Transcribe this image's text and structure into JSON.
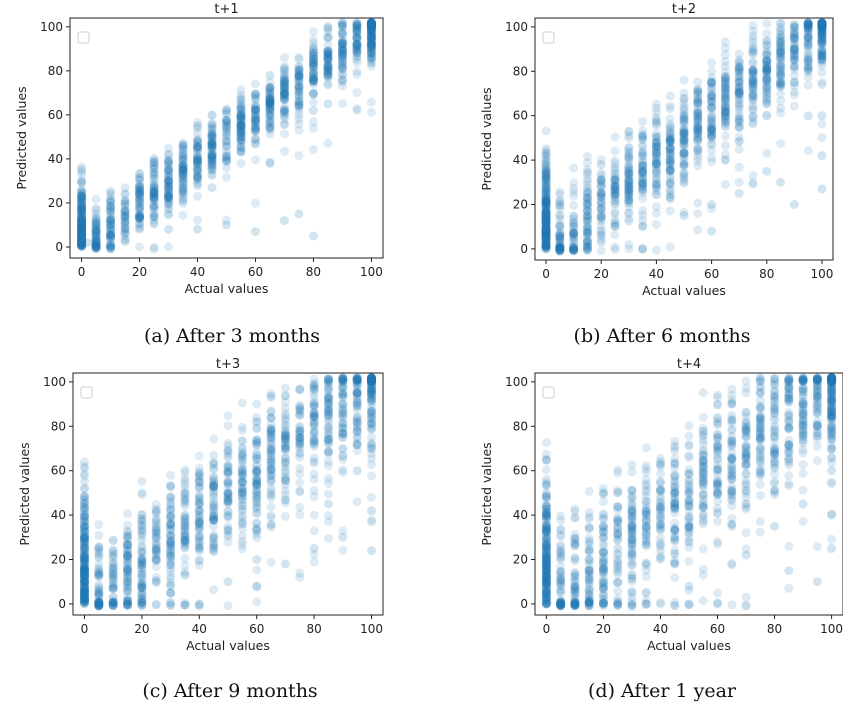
{
  "chart_data": [
    {
      "type": "scatter",
      "title": "t+1",
      "caption": "(a) After 3 months",
      "xlabel": "Actual values",
      "ylabel": "Predicted values",
      "xlim": [
        -4,
        104
      ],
      "ylim": [
        -5,
        104
      ],
      "xticks": [
        0,
        20,
        40,
        60,
        80,
        100
      ],
      "yticks": [
        0,
        20,
        40,
        60,
        80,
        100
      ],
      "legend": "top-left (empty)",
      "color": "#1f77b4",
      "point_alpha": 0.15,
      "spread_label": "tight",
      "points": [
        [
          0,
          0
        ],
        [
          0,
          3
        ],
        [
          0,
          6
        ],
        [
          0,
          9
        ],
        [
          2,
          2
        ],
        [
          5,
          6
        ],
        [
          10,
          10
        ],
        [
          15,
          15
        ],
        [
          20,
          20
        ],
        [
          25,
          25
        ],
        [
          30,
          30
        ],
        [
          35,
          35
        ],
        [
          40,
          40
        ],
        [
          45,
          45
        ],
        [
          50,
          50
        ],
        [
          55,
          55
        ],
        [
          60,
          60
        ],
        [
          65,
          65
        ],
        [
          70,
          70
        ],
        [
          75,
          75
        ],
        [
          80,
          80
        ],
        [
          85,
          85
        ],
        [
          90,
          90
        ],
        [
          95,
          95
        ],
        [
          100,
          98
        ],
        [
          20,
          8
        ],
        [
          30,
          8
        ],
        [
          40,
          8
        ],
        [
          50,
          10
        ],
        [
          60,
          7
        ],
        [
          80,
          5
        ],
        [
          70,
          12
        ],
        [
          75,
          15
        ],
        [
          35,
          20
        ],
        [
          45,
          27
        ],
        [
          65,
          38
        ],
        [
          40,
          55
        ],
        [
          55,
          65
        ],
        [
          65,
          78
        ],
        [
          80,
          62
        ],
        [
          85,
          65
        ],
        [
          90,
          75
        ],
        [
          95,
          92
        ],
        [
          100,
          95
        ],
        [
          100,
          93
        ]
      ]
    },
    {
      "type": "scatter",
      "title": "t+2",
      "caption": "(b) After 6 months",
      "xlabel": "Actual values",
      "ylabel": "Predicted values",
      "xlim": [
        -4,
        104
      ],
      "ylim": [
        -5,
        104
      ],
      "xticks": [
        0,
        20,
        40,
        60,
        80,
        100
      ],
      "yticks": [
        0,
        20,
        40,
        60,
        80,
        100
      ],
      "legend": "top-left (empty)",
      "color": "#1f77b4",
      "point_alpha": 0.15,
      "spread_label": "medium",
      "points": [
        [
          0,
          0
        ],
        [
          0,
          5
        ],
        [
          0,
          10
        ],
        [
          0,
          15
        ],
        [
          0,
          20
        ],
        [
          0,
          25
        ],
        [
          0,
          32
        ],
        [
          0,
          45
        ],
        [
          5,
          5
        ],
        [
          10,
          10
        ],
        [
          15,
          15
        ],
        [
          20,
          20
        ],
        [
          25,
          25
        ],
        [
          30,
          30
        ],
        [
          35,
          35
        ],
        [
          40,
          40
        ],
        [
          45,
          45
        ],
        [
          50,
          50
        ],
        [
          55,
          55
        ],
        [
          60,
          60
        ],
        [
          65,
          65
        ],
        [
          70,
          70
        ],
        [
          75,
          75
        ],
        [
          80,
          80
        ],
        [
          85,
          85
        ],
        [
          90,
          90
        ],
        [
          95,
          95
        ],
        [
          100,
          98
        ],
        [
          20,
          3
        ],
        [
          35,
          10
        ],
        [
          50,
          15
        ],
        [
          60,
          20
        ],
        [
          70,
          25
        ],
        [
          80,
          35
        ],
        [
          85,
          30
        ],
        [
          90,
          20
        ],
        [
          100,
          60
        ],
        [
          100,
          42
        ],
        [
          100,
          27
        ],
        [
          95,
          60
        ],
        [
          90,
          75
        ],
        [
          60,
          8
        ],
        [
          20,
          38
        ],
        [
          40,
          58
        ],
        [
          60,
          75
        ]
      ]
    },
    {
      "type": "scatter",
      "title": "t+3",
      "caption": "(c) After 9 months",
      "xlabel": "Actual values",
      "ylabel": "Predicted values",
      "xlim": [
        -4,
        104
      ],
      "ylim": [
        -5,
        104
      ],
      "xticks": [
        0,
        20,
        40,
        60,
        80,
        100
      ],
      "yticks": [
        0,
        20,
        40,
        60,
        80,
        100
      ],
      "legend": "top-left (empty)",
      "color": "#1f77b4",
      "point_alpha": 0.15,
      "spread_label": "wide",
      "points": [
        [
          0,
          0
        ],
        [
          0,
          5
        ],
        [
          0,
          10
        ],
        [
          0,
          15
        ],
        [
          0,
          20
        ],
        [
          0,
          25
        ],
        [
          0,
          30
        ],
        [
          0,
          35
        ],
        [
          5,
          5
        ],
        [
          10,
          12
        ],
        [
          15,
          15
        ],
        [
          20,
          20
        ],
        [
          25,
          25
        ],
        [
          30,
          30
        ],
        [
          35,
          35
        ],
        [
          40,
          40
        ],
        [
          45,
          45
        ],
        [
          50,
          50
        ],
        [
          55,
          55
        ],
        [
          60,
          60
        ],
        [
          65,
          65
        ],
        [
          70,
          70
        ],
        [
          75,
          75
        ],
        [
          80,
          80
        ],
        [
          85,
          85
        ],
        [
          90,
          90
        ],
        [
          95,
          95
        ],
        [
          100,
          98
        ],
        [
          40,
          0
        ],
        [
          20,
          2
        ],
        [
          60,
          8
        ],
        [
          70,
          18
        ],
        [
          80,
          25
        ],
        [
          90,
          30
        ],
        [
          100,
          24
        ],
        [
          100,
          42
        ],
        [
          100,
          70
        ],
        [
          95,
          60
        ],
        [
          85,
          45
        ],
        [
          60,
          20
        ],
        [
          30,
          5
        ],
        [
          50,
          10
        ],
        [
          20,
          35
        ],
        [
          40,
          55
        ],
        [
          60,
          72
        ]
      ]
    },
    {
      "type": "scatter",
      "title": "t+4",
      "caption": "(d) After 1 year",
      "xlabel": "Actual values",
      "ylabel": "Predicted values",
      "xlim": [
        -4,
        104
      ],
      "ylim": [
        -5,
        104
      ],
      "xticks": [
        0,
        20,
        40,
        60,
        80,
        100
      ],
      "yticks": [
        0,
        20,
        40,
        60,
        80,
        100
      ],
      "legend": "top-left (empty)",
      "color": "#1f77b4",
      "point_alpha": 0.15,
      "spread_label": "widest",
      "points": [
        [
          0,
          0
        ],
        [
          0,
          5
        ],
        [
          0,
          10
        ],
        [
          0,
          15
        ],
        [
          0,
          20
        ],
        [
          0,
          25
        ],
        [
          0,
          30
        ],
        [
          0,
          35
        ],
        [
          0,
          48
        ],
        [
          5,
          5
        ],
        [
          10,
          10
        ],
        [
          15,
          15
        ],
        [
          20,
          20
        ],
        [
          25,
          25
        ],
        [
          30,
          30
        ],
        [
          35,
          35
        ],
        [
          40,
          40
        ],
        [
          45,
          45
        ],
        [
          50,
          50
        ],
        [
          55,
          55
        ],
        [
          60,
          60
        ],
        [
          65,
          65
        ],
        [
          70,
          70
        ],
        [
          75,
          75
        ],
        [
          80,
          80
        ],
        [
          85,
          85
        ],
        [
          90,
          90
        ],
        [
          95,
          95
        ],
        [
          100,
          100
        ],
        [
          35,
          0
        ],
        [
          60,
          0
        ],
        [
          85,
          15
        ],
        [
          95,
          10
        ],
        [
          100,
          25
        ],
        [
          100,
          40
        ],
        [
          100,
          60
        ],
        [
          90,
          45
        ],
        [
          80,
          35
        ],
        [
          70,
          22
        ],
        [
          20,
          2
        ],
        [
          30,
          5
        ],
        [
          50,
          8
        ],
        [
          40,
          55
        ],
        [
          60,
          75
        ],
        [
          20,
          35
        ]
      ]
    }
  ]
}
